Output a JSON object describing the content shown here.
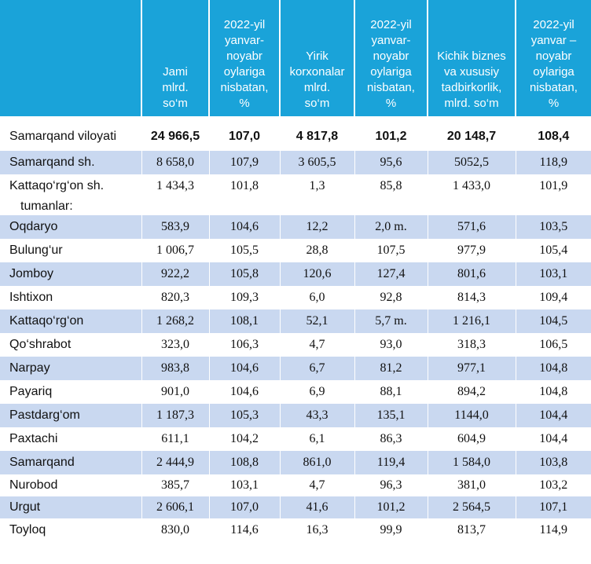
{
  "headers": [
    "",
    "Jami\nmlrd.\nso‘m",
    "2022-yil\nyanvar-\nnoyabr\noylariga\nnisbatan,\n%",
    "Yirik\nkorxonalar\nmlrd.\nso‘m",
    "2022-yil\nyanvar-\nnoyabr\noylariga\nnisbatan,\n%",
    "Kichik biznes\nva xususiy\ntadbirkorlik,\nmlrd. so‘m",
    "2022-yil\nyanvar –\nnoyabr\noylariga\nnisbatan,\n%"
  ],
  "total": {
    "name": "Samarqand viloyati",
    "v": [
      "24 966,5",
      "107,0",
      "4 817,8",
      "101,2",
      "20 148,7",
      "108,4"
    ]
  },
  "cities": [
    {
      "name": "Samarqand sh.",
      "v": [
        "8 658,0",
        "107,9",
        "3 605,5",
        "95,6",
        "5052,5",
        "118,9"
      ]
    },
    {
      "name": "Kattaqo‘rg‘on  sh.",
      "v": [
        "1 434,3",
        "101,8",
        "1,3",
        "85,8",
        "1 433,0",
        "101,9"
      ]
    }
  ],
  "districts_label": "tumanlar:",
  "districts": [
    {
      "name": "Oqdaryo",
      "v": [
        "583,9",
        "104,6",
        "12,2",
        "2,0 m.",
        "571,6",
        "103,5"
      ]
    },
    {
      "name": "Bulung‘ur",
      "v": [
        "1 006,7",
        "105,5",
        "28,8",
        "107,5",
        "977,9",
        "105,4"
      ]
    },
    {
      "name": "Jomboy",
      "v": [
        "922,2",
        "105,8",
        "120,6",
        "127,4",
        "801,6",
        "103,1"
      ]
    },
    {
      "name": "Ishtixon",
      "v": [
        "820,3",
        "109,3",
        "6,0",
        "92,8",
        "814,3",
        "109,4"
      ]
    },
    {
      "name": "Kattaqo‘rg‘on",
      "v": [
        "1 268,2",
        "108,1",
        "52,1",
        "5,7 m.",
        "1 216,1",
        "104,5"
      ]
    },
    {
      "name": "Qo‘shrabot",
      "v": [
        "323,0",
        "106,3",
        "4,7",
        "93,0",
        "318,3",
        "106,5"
      ]
    },
    {
      "name": "Narpay",
      "v": [
        "983,8",
        "104,6",
        "6,7",
        "81,2",
        "977,1",
        "104,8"
      ]
    },
    {
      "name": "Payariq",
      "v": [
        "901,0",
        "104,6",
        "6,9",
        "88,1",
        "894,2",
        "104,8"
      ]
    },
    {
      "name": "Pastdarg‘om",
      "v": [
        "1 187,3",
        "105,3",
        "43,3",
        "135,1",
        "1144,0",
        "104,4"
      ]
    },
    {
      "name": "Paxtachi",
      "v": [
        "611,1",
        "104,2",
        "6,1",
        "86,3",
        "604,9",
        "104,4"
      ]
    },
    {
      "name": "Samarqand",
      "v": [
        "2 444,9",
        "108,8",
        "861,0",
        "119,4",
        "1 584,0",
        "103,8"
      ]
    },
    {
      "name": "Nurobod",
      "v": [
        "385,7",
        "103,1",
        "4,7",
        "96,3",
        "381,0",
        "103,2"
      ]
    },
    {
      "name": "Urgut",
      "v": [
        "2 606,1",
        "107,0",
        "41,6",
        "101,2",
        "2 564,5",
        "107,1"
      ]
    },
    {
      "name": "Toyloq",
      "v": [
        "830,0",
        "114,6",
        "16,3",
        "99,9",
        "813,7",
        "114,9"
      ]
    }
  ]
}
